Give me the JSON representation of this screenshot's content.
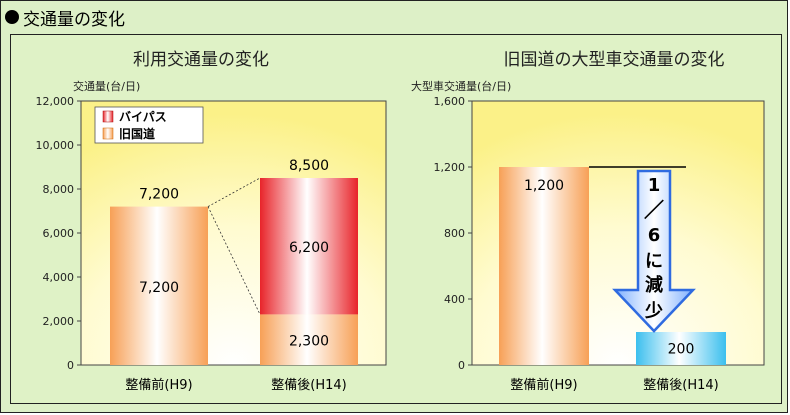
{
  "header": {
    "title": "交通量の変化"
  },
  "chart_data": [
    {
      "type": "bar",
      "title": "利用交通量の変化",
      "ylabel": "交通量(台/日)",
      "ylim": [
        0,
        12000
      ],
      "yticks": [
        "0",
        "2,000",
        "4,000",
        "6,000",
        "8,000",
        "10,000",
        "12,000"
      ],
      "categories": [
        "整備前(H9)",
        "整備後(H14)"
      ],
      "stacked": true,
      "series": [
        {
          "name": "旧国道",
          "values": [
            7200,
            2300
          ],
          "labels": [
            "7,200",
            "2,300"
          ]
        },
        {
          "name": "バイパス",
          "values": [
            0,
            6200
          ],
          "labels": [
            "",
            "6,200"
          ]
        }
      ],
      "totals": [
        7200,
        8500
      ],
      "total_labels": [
        "7,200",
        "8,500"
      ],
      "legend": {
        "position": "top-left",
        "entries": [
          "バイパス",
          "旧国道"
        ]
      },
      "colors": {
        "旧国道": "#f7a056",
        "バイパス": "#e8242a"
      }
    },
    {
      "type": "bar",
      "title": "旧国道の大型車交通量の変化",
      "ylabel": "大型車交通量(台/日)",
      "ylim": [
        0,
        1600
      ],
      "yticks": [
        "0",
        "400",
        "800",
        "1,200",
        "1,600"
      ],
      "categories": [
        "整備前(H9)",
        "整備後(H14)"
      ],
      "series": [
        {
          "values": [
            1200,
            200
          ],
          "labels": [
            "1,200",
            "200"
          ]
        }
      ],
      "colors": {
        "before": "#f7a056",
        "after": "#3bbfee"
      },
      "annotation": {
        "text": [
          "1",
          "／",
          "6",
          "に",
          "減",
          "少"
        ]
      }
    }
  ]
}
